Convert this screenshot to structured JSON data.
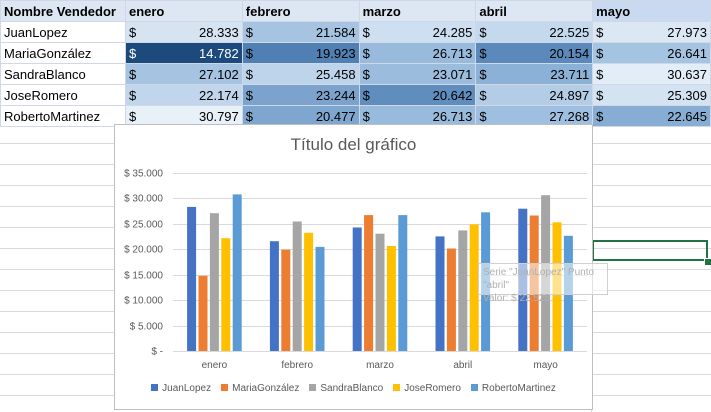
{
  "header": {
    "name_col": "Nombre Vendedor",
    "months": [
      "enero",
      "febrero",
      "marzo",
      "abril",
      "mayo"
    ]
  },
  "currency_symbol": "$",
  "rows": [
    {
      "name": "JuanLopez",
      "values": [
        "28.333",
        "21.584",
        "24.285",
        "22.525",
        "27.973"
      ]
    },
    {
      "name": "MariaGonzález",
      "values": [
        "14.782",
        "19.923",
        "26.713",
        "20.154",
        "26.641"
      ]
    },
    {
      "name": "SandraBlanco",
      "values": [
        "27.102",
        "25.458",
        "23.071",
        "23.711",
        "30.637"
      ]
    },
    {
      "name": "JoseRomero",
      "values": [
        "22.174",
        "23.244",
        "20.642",
        "24.897",
        "25.309"
      ]
    },
    {
      "name": "RobertoMartinez",
      "values": [
        "30.797",
        "20.477",
        "26.713",
        "27.268",
        "22.645"
      ]
    }
  ],
  "heatmap_colors": [
    [
      "#d6e4f2",
      "#a6c4e1",
      "#cddff0",
      "#c5d9ee",
      "#dbe8f4"
    ],
    [
      "#1d4a7c",
      "#4f7fb3",
      "#98bbdd",
      "#5b89bb",
      "#a5c4e2"
    ],
    [
      "#a6c4e1",
      "#bed4eb",
      "#9bbcdd",
      "#8cb1d7",
      "#e3edf7"
    ],
    [
      "#c1d6ec",
      "#7ca3cd",
      "#5f8dbd",
      "#b4cde7",
      "#d4e3f2"
    ],
    [
      "#e8f0f8",
      "#7fa6cf",
      "#98bbdd",
      "#9ebfdf",
      "#88add5"
    ]
  ],
  "tooltip": {
    "line1": "Serie \"JuanLopez\" Punto \"abril\"",
    "line2": "Valor: $ 22.525"
  },
  "chart_data": {
    "type": "bar",
    "title": "Título del gráfico",
    "categories": [
      "enero",
      "febrero",
      "marzo",
      "abril",
      "mayo"
    ],
    "ylim": [
      0,
      35000
    ],
    "yticks": [
      0,
      5000,
      10000,
      15000,
      20000,
      25000,
      30000,
      35000
    ],
    "ytick_labels": [
      "$ -",
      "$ 5.000",
      "$ 10.000",
      "$ 15.000",
      "$ 20.000",
      "$ 25.000",
      "$ 30.000",
      "$ 35.000"
    ],
    "grid": true,
    "legend_position": "bottom",
    "series": [
      {
        "name": "JuanLopez",
        "color": "#4472c4",
        "values": [
          28333,
          21584,
          24285,
          22525,
          27973
        ]
      },
      {
        "name": "MariaGonzález",
        "color": "#ed7d31",
        "values": [
          14782,
          19923,
          26713,
          20154,
          26641
        ]
      },
      {
        "name": "SandraBlanco",
        "color": "#a5a5a5",
        "values": [
          27102,
          25458,
          23071,
          23711,
          30637
        ]
      },
      {
        "name": "JoseRomero",
        "color": "#ffc000",
        "values": [
          22174,
          23244,
          20642,
          24897,
          25309
        ]
      },
      {
        "name": "RobertoMartinez",
        "color": "#5b9bd5",
        "values": [
          30797,
          20477,
          26713,
          27268,
          22645
        ]
      }
    ]
  }
}
